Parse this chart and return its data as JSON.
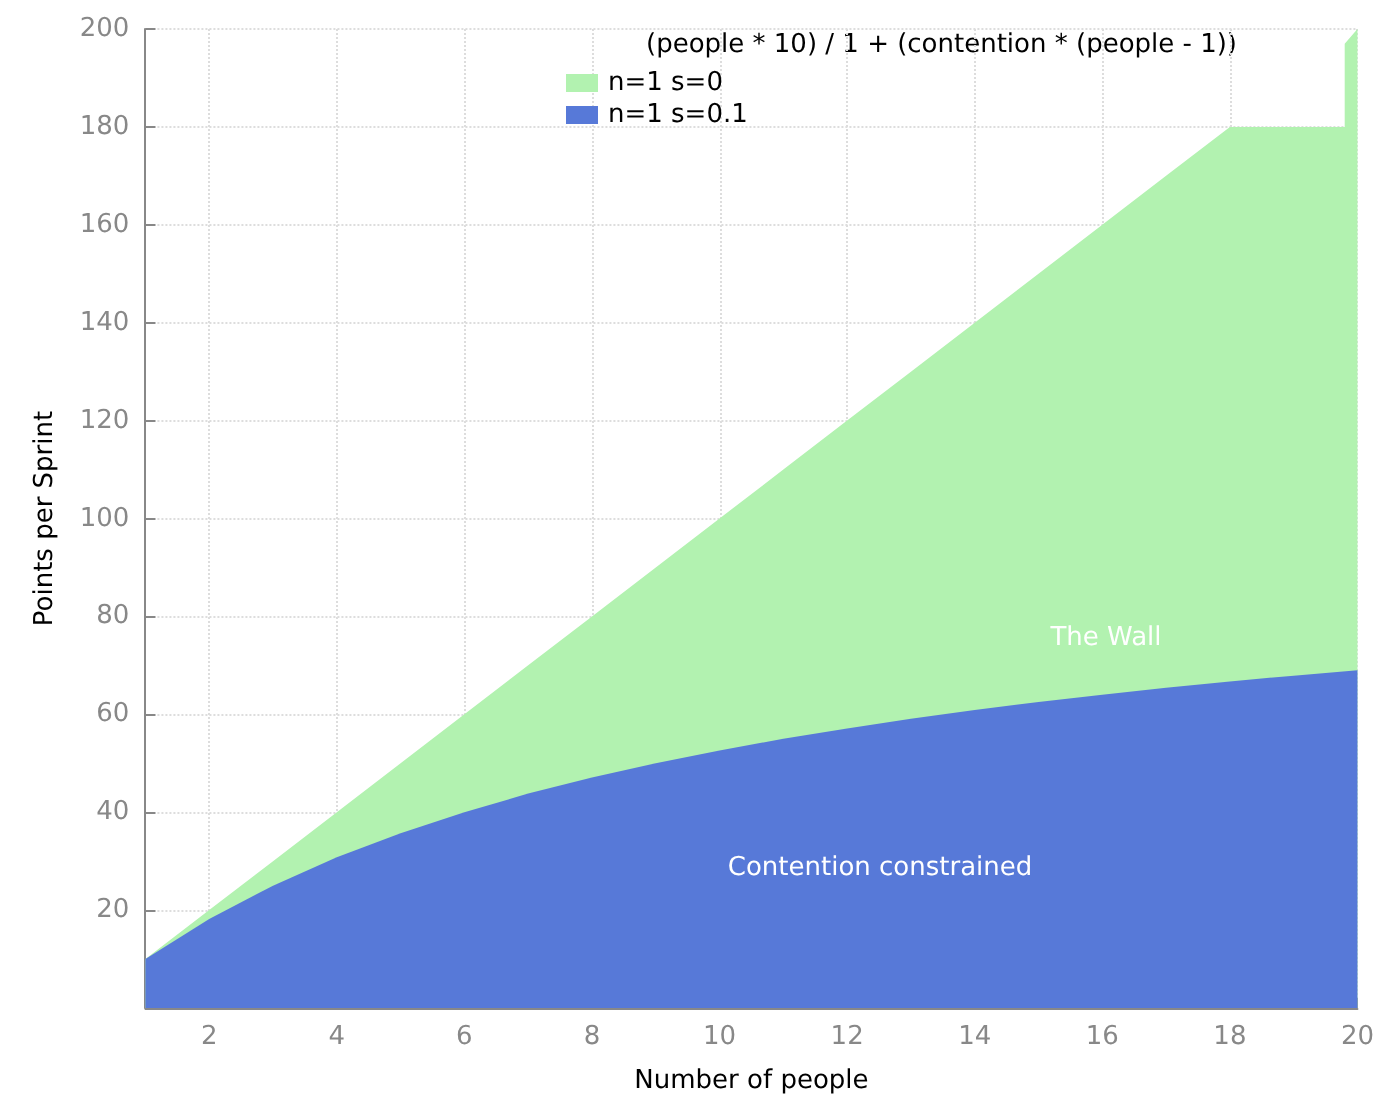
{
  "chart_data": {
    "type": "area",
    "xlabel": "Number of people",
    "ylabel": "Points per Sprint",
    "legend_title": "(people * 10) / 1 + (contention * (people - 1))",
    "xlim": [
      1,
      20
    ],
    "xticks": [
      2,
      4,
      6,
      8,
      10,
      12,
      14,
      16,
      18,
      20
    ],
    "ylim": [
      0,
      200
    ],
    "yticks": [
      20,
      40,
      60,
      80,
      100,
      120,
      140,
      160,
      180,
      200
    ],
    "grid": true,
    "legend": "top",
    "marker": "none",
    "series": [
      {
        "name": "n=1 s=0",
        "color": "#b2f2b0",
        "x": [
          1,
          2,
          3,
          4,
          5,
          6,
          7,
          8,
          9,
          10,
          11,
          12,
          13,
          14,
          15,
          16,
          17,
          18,
          19.8,
          19.8,
          20
        ],
        "values": [
          10,
          20,
          30,
          40,
          50,
          60,
          70,
          80,
          90,
          100,
          110,
          120,
          130,
          140,
          150,
          160,
          170,
          180,
          180,
          197,
          200
        ]
      },
      {
        "name": "n=1 s=0.1",
        "color": "#5779d8",
        "x": [
          1,
          2,
          3,
          4,
          5,
          6,
          7,
          8,
          9,
          10,
          11,
          12,
          13,
          14,
          15,
          16,
          17,
          18,
          19,
          20
        ],
        "values": [
          10,
          18.2,
          25,
          30.8,
          35.7,
          40,
          43.8,
          47.1,
          50,
          52.6,
          55,
          57.1,
          59.1,
          60.9,
          62.5,
          64,
          65.4,
          66.7,
          67.9,
          69
        ]
      }
    ],
    "annotations": [
      "The Wall",
      "Contention constrained"
    ]
  }
}
